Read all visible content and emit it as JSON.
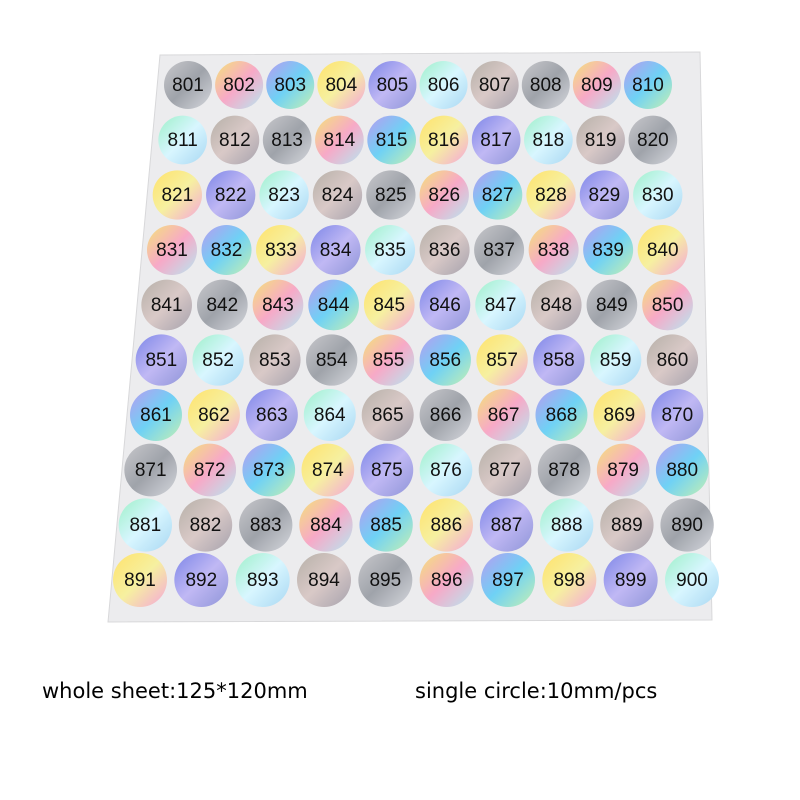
{
  "stickers": {
    "rows": [
      [
        "801",
        "802",
        "803",
        "804",
        "805",
        "806",
        "807",
        "808",
        "809",
        "810"
      ],
      [
        "811",
        "812",
        "813",
        "814",
        "815",
        "816",
        "817",
        "818",
        "819",
        "820"
      ],
      [
        "821",
        "822",
        "823",
        "824",
        "825",
        "826",
        "827",
        "828",
        "829",
        "830"
      ],
      [
        "831",
        "832",
        "833",
        "834",
        "835",
        "836",
        "837",
        "838",
        "839",
        "840"
      ],
      [
        "841",
        "842",
        "843",
        "844",
        "845",
        "846",
        "847",
        "848",
        "849",
        "850"
      ],
      [
        "851",
        "852",
        "853",
        "854",
        "855",
        "856",
        "857",
        "858",
        "859",
        "860"
      ],
      [
        "861",
        "862",
        "863",
        "864",
        "865",
        "866",
        "867",
        "868",
        "869",
        "870"
      ],
      [
        "871",
        "872",
        "873",
        "874",
        "875",
        "876",
        "877",
        "878",
        "879",
        "880"
      ],
      [
        "881",
        "882",
        "883",
        "884",
        "885",
        "886",
        "887",
        "888",
        "889",
        "890"
      ],
      [
        "891",
        "892",
        "893",
        "894",
        "895",
        "896",
        "897",
        "898",
        "899",
        "900"
      ]
    ]
  },
  "caption": {
    "sheet": "whole sheet:125*120mm",
    "circle": "single circle:10mm/pcs"
  }
}
